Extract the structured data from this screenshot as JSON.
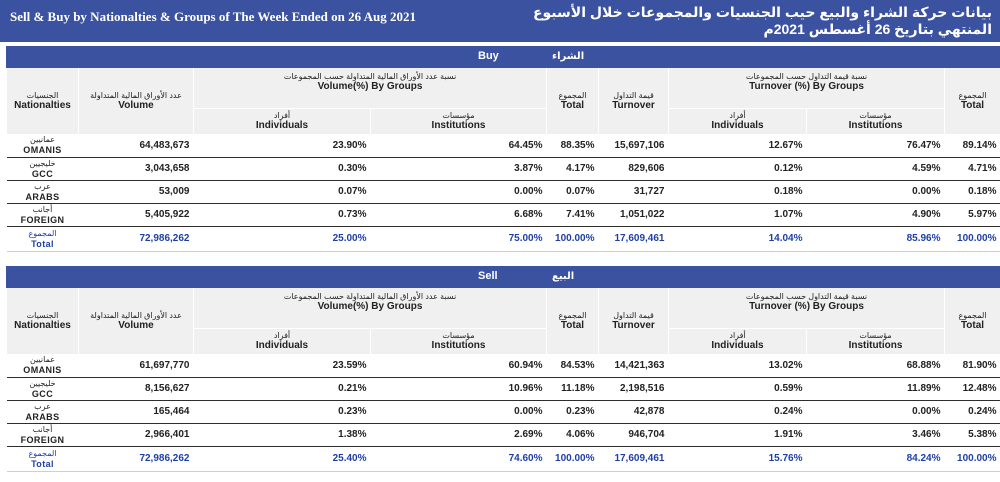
{
  "header": {
    "title_en": "Sell & Buy by Nationalties & Groups of The Week Ended on 26 Aug 2021",
    "title_ar": "بيانات حركة الشراء والبيع حيب الجنسيات والمجموعات خلال الأسبوع المنتهي  بتاريخ 26 أغسطس 2021م"
  },
  "columns": {
    "nationalities_ar": "الجنسيات",
    "nationalities_en": "Nationalties",
    "volume_ar": "عدد الأوراق المالية المتداولة",
    "volume_en": "Volume",
    "volume_pct_ar": "نسبة عدد الأوراق المالية المتداولة حسب المجموعات",
    "volume_pct_en": "Volume(%) By Groups",
    "individuals_ar": "أفراد",
    "individuals_en": "Individuals",
    "institutions_ar": "مؤسسات",
    "institutions_en": "Institutions",
    "total_ar": "المجموع",
    "total_en": "Total",
    "turnover_ar": "قيمة التداول",
    "turnover_en": "Turnover",
    "turnover_pct_ar": "نسبة قيمة التداول حسب المجموعات",
    "turnover_pct_en": "Turnover (%) By Groups"
  },
  "buy": {
    "label_en": "Buy",
    "label_ar": "الشراء",
    "rows": [
      {
        "name_ar": "عمانيين",
        "name_en": "OMANIS",
        "volume": "64,483,673",
        "vol_ind": "23.90%",
        "vol_inst": "64.45%",
        "vol_total": "88.35%",
        "turnover": "15,697,106",
        "to_ind": "12.67%",
        "to_inst": "76.47%",
        "to_total": "89.14%"
      },
      {
        "name_ar": "خليجيين",
        "name_en": "GCC",
        "volume": "3,043,658",
        "vol_ind": "0.30%",
        "vol_inst": "3.87%",
        "vol_total": "4.17%",
        "turnover": "829,606",
        "to_ind": "0.12%",
        "to_inst": "4.59%",
        "to_total": "4.71%"
      },
      {
        "name_ar": "عرب",
        "name_en": "ARABS",
        "volume": "53,009",
        "vol_ind": "0.07%",
        "vol_inst": "0.00%",
        "vol_total": "0.07%",
        "turnover": "31,727",
        "to_ind": "0.18%",
        "to_inst": "0.00%",
        "to_total": "0.18%"
      },
      {
        "name_ar": "أجانب",
        "name_en": "FOREIGN",
        "volume": "5,405,922",
        "vol_ind": "0.73%",
        "vol_inst": "6.68%",
        "vol_total": "7.41%",
        "turnover": "1,051,022",
        "to_ind": "1.07%",
        "to_inst": "4.90%",
        "to_total": "5.97%"
      }
    ],
    "total": {
      "name_ar": "المجموع",
      "name_en": "Total",
      "volume": "72,986,262",
      "vol_ind": "25.00%",
      "vol_inst": "75.00%",
      "vol_total": "100.00%",
      "turnover": "17,609,461",
      "to_ind": "14.04%",
      "to_inst": "85.96%",
      "to_total": "100.00%"
    }
  },
  "sell": {
    "label_en": "Sell",
    "label_ar": "البيع",
    "rows": [
      {
        "name_ar": "عمانيين",
        "name_en": "OMANIS",
        "volume": "61,697,770",
        "vol_ind": "23.59%",
        "vol_inst": "60.94%",
        "vol_total": "84.53%",
        "turnover": "14,421,363",
        "to_ind": "13.02%",
        "to_inst": "68.88%",
        "to_total": "81.90%"
      },
      {
        "name_ar": "خليجيين",
        "name_en": "GCC",
        "volume": "8,156,627",
        "vol_ind": "0.21%",
        "vol_inst": "10.96%",
        "vol_total": "11.18%",
        "turnover": "2,198,516",
        "to_ind": "0.59%",
        "to_inst": "11.89%",
        "to_total": "12.48%"
      },
      {
        "name_ar": "عرب",
        "name_en": "ARABS",
        "volume": "165,464",
        "vol_ind": "0.23%",
        "vol_inst": "0.00%",
        "vol_total": "0.23%",
        "turnover": "42,878",
        "to_ind": "0.24%",
        "to_inst": "0.00%",
        "to_total": "0.24%"
      },
      {
        "name_ar": "أجانب",
        "name_en": "FOREIGN",
        "volume": "2,966,401",
        "vol_ind": "1.38%",
        "vol_inst": "2.69%",
        "vol_total": "4.06%",
        "turnover": "946,704",
        "to_ind": "1.91%",
        "to_inst": "3.46%",
        "to_total": "5.38%"
      }
    ],
    "total": {
      "name_ar": "المجموع",
      "name_en": "Total",
      "volume": "72,986,262",
      "vol_ind": "25.40%",
      "vol_inst": "74.60%",
      "vol_total": "100.00%",
      "turnover": "17,609,461",
      "to_ind": "15.76%",
      "to_inst": "84.24%",
      "to_total": "100.00%"
    }
  }
}
